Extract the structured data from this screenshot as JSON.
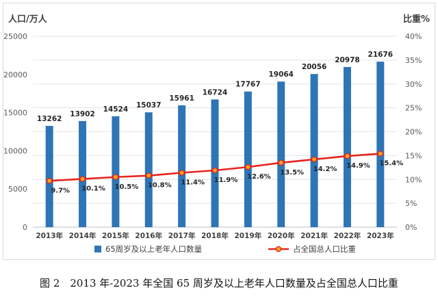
{
  "chart_data": {
    "type": "bar+line",
    "categories": [
      "2013年",
      "2014年",
      "2015年",
      "2016年",
      "2017年",
      "2018年",
      "2019年",
      "2020年",
      "2021年",
      "2022年",
      "2023年"
    ],
    "series": [
      {
        "name": "65周岁及以上老年人口数量",
        "type": "bar",
        "axis": "left",
        "values": [
          13262,
          13902,
          14524,
          15037,
          15961,
          16724,
          17767,
          19064,
          20056,
          20978,
          21676
        ],
        "labels": [
          "13262",
          "13902",
          "14524",
          "15037",
          "15961",
          "16724",
          "17767",
          "19064",
          "20056",
          "20978",
          "21676"
        ],
        "color": "#2e75b6"
      },
      {
        "name": "占全国总人口比重",
        "type": "line",
        "axis": "right",
        "values": [
          9.7,
          10.1,
          10.5,
          10.8,
          11.4,
          11.9,
          12.6,
          13.5,
          14.2,
          14.9,
          15.4
        ],
        "labels": [
          "9.7%",
          "10.1%",
          "10.5%",
          "10.8%",
          "11.4%",
          "11.9%",
          "12.6%",
          "13.5%",
          "14.2%",
          "14.9%",
          "15.4%"
        ],
        "color": "#e8231d",
        "marker_color": "#f5a623"
      }
    ],
    "y_left": {
      "label": "人口/万人",
      "ylim": [
        0,
        25000
      ],
      "ticks": [
        "0",
        "5000",
        "10000",
        "15000",
        "20000",
        "25000"
      ]
    },
    "y_right": {
      "label": "比重%",
      "ylim": [
        0,
        40
      ],
      "ticks": [
        "0%",
        "5%",
        "10%",
        "15%",
        "20%",
        "25%",
        "30%",
        "35%",
        "40%"
      ]
    },
    "grid": true,
    "legend_placement": "bottom"
  },
  "caption": "图 2　2013 年-2023 年全国 65 周岁及以上老年人口数量及占全国总人口比重"
}
